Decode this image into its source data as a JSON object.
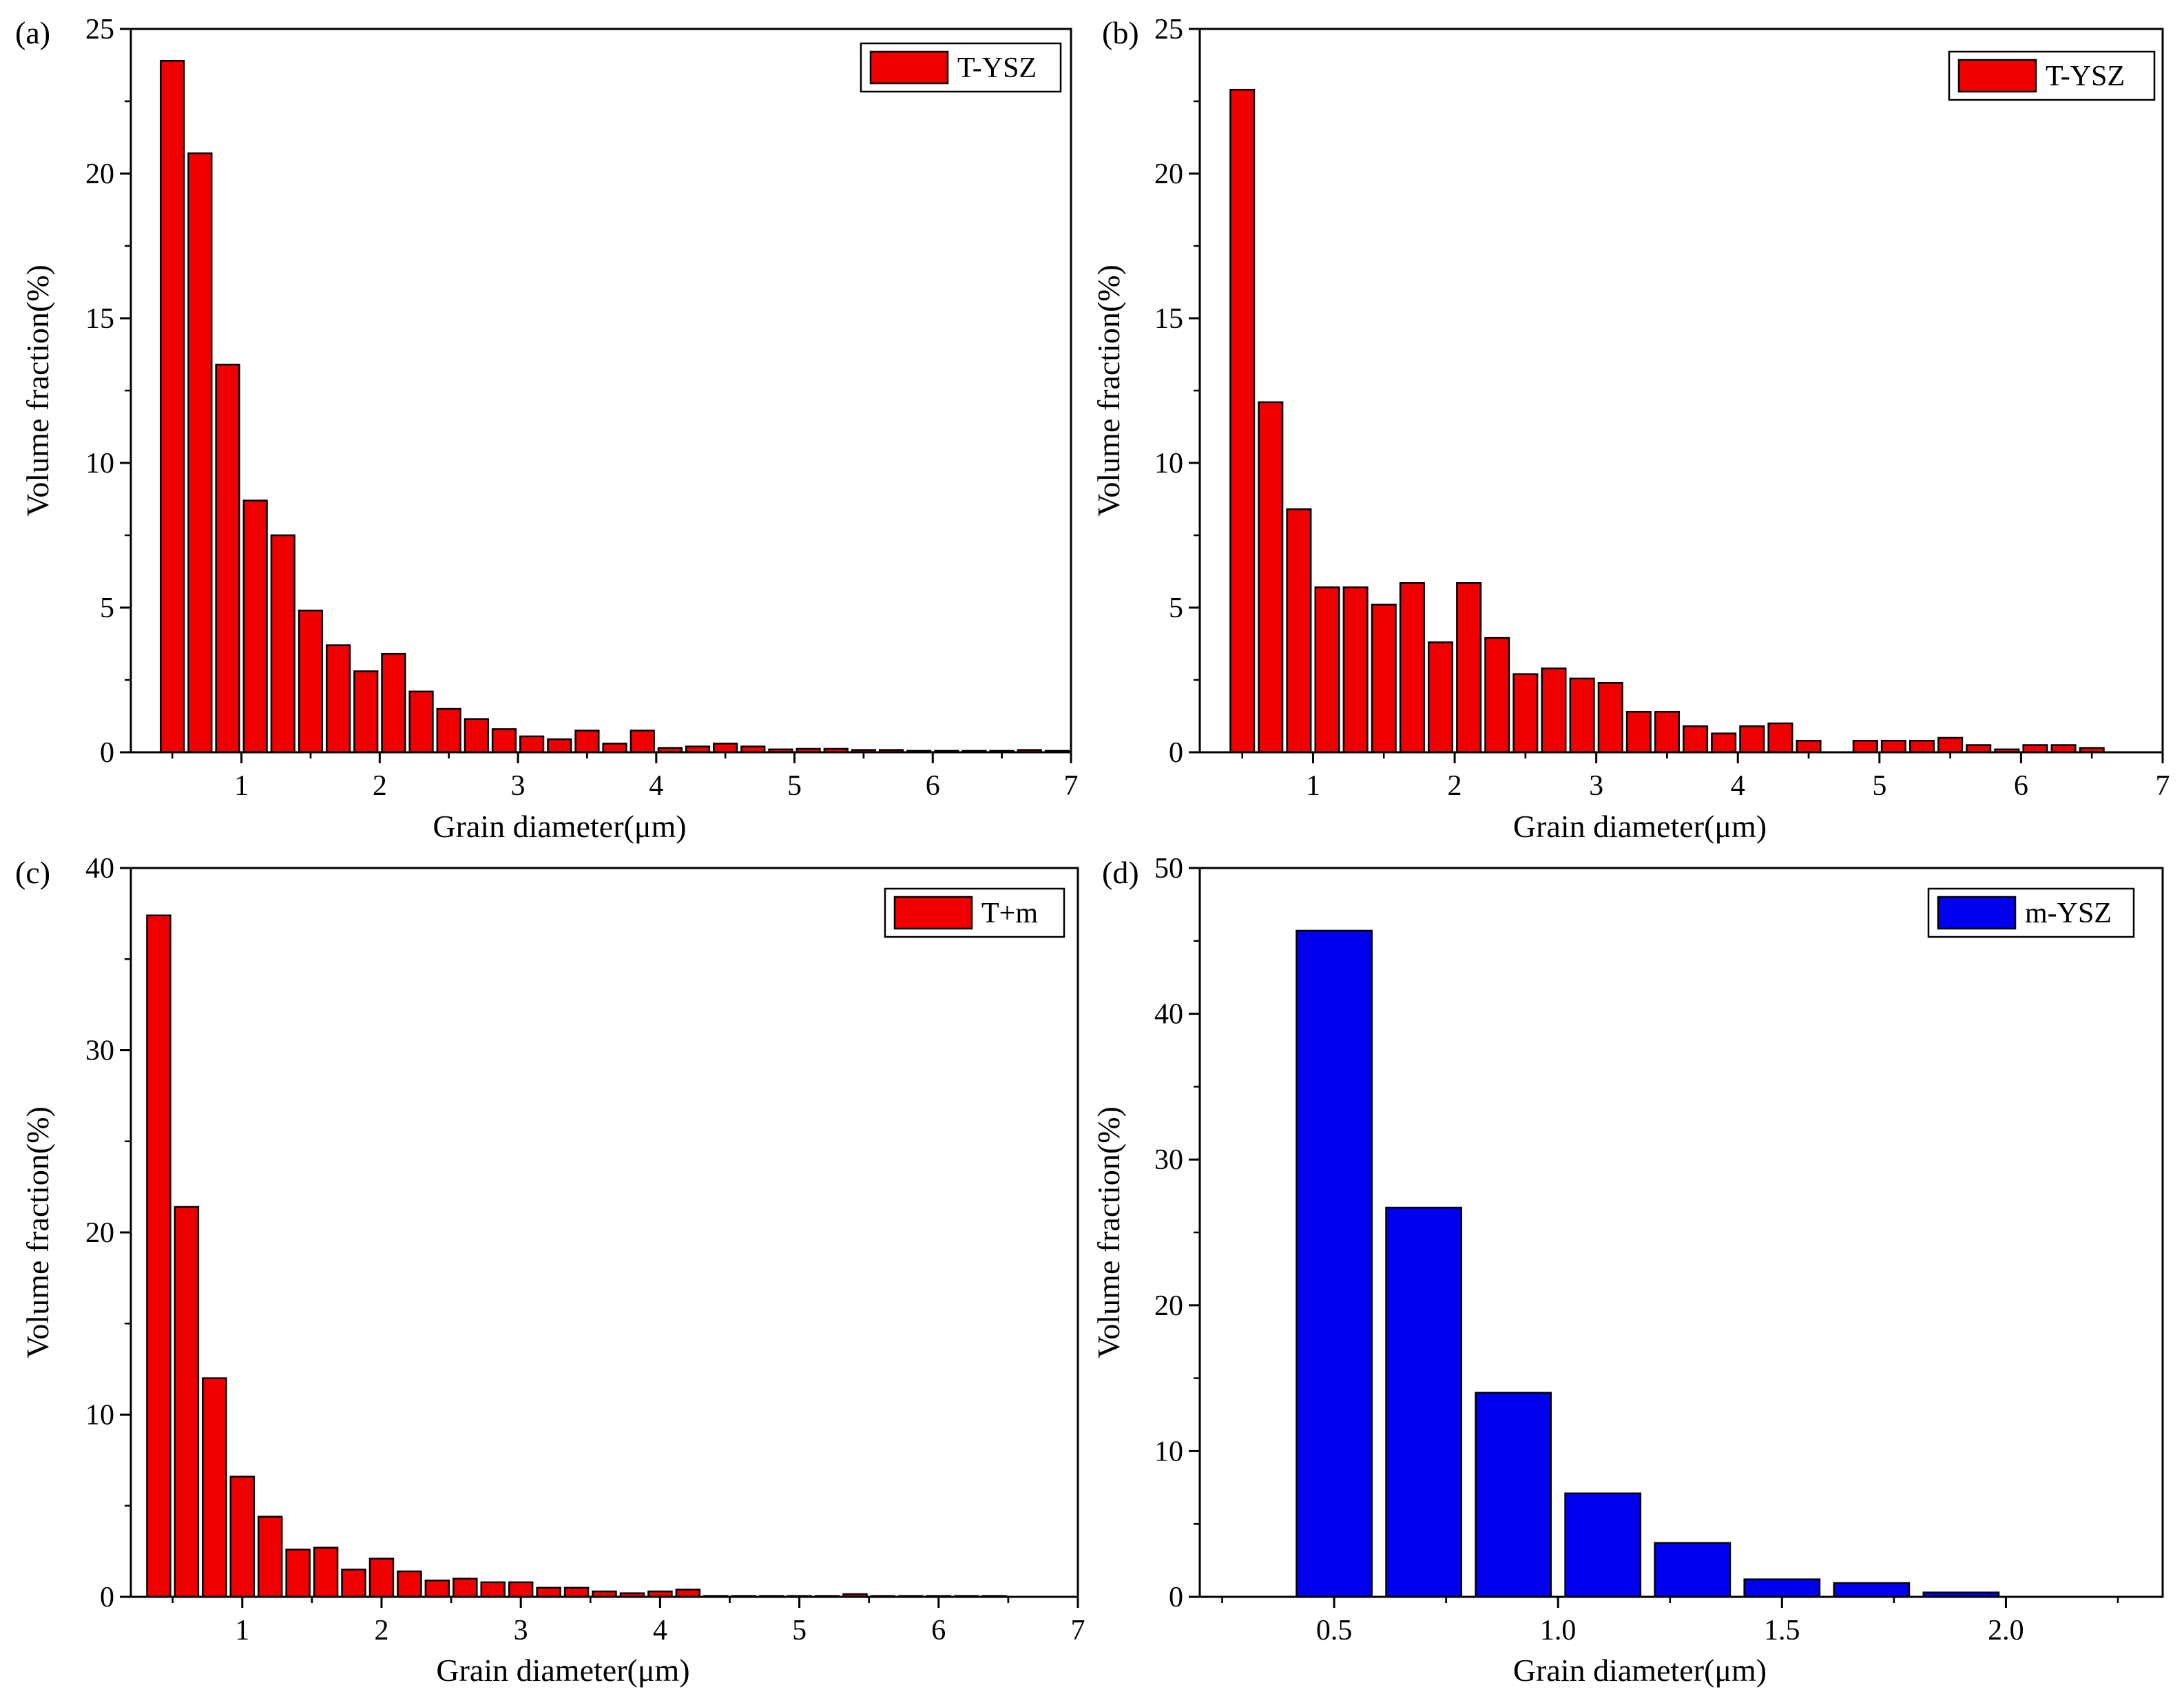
{
  "chart_data": [
    {
      "type": "bar",
      "panel_label": "(a)",
      "xlabel": "Grain diameter(μm)",
      "ylabel": "Volume fraction(%)",
      "xlim": [
        0.2,
        7
      ],
      "ylim": [
        0,
        25
      ],
      "xticks": [
        1,
        2,
        3,
        4,
        5,
        6,
        7
      ],
      "xtick_labels": [
        "1",
        "2",
        "3",
        "4",
        "5",
        "6",
        "7"
      ],
      "yticks": [
        0,
        5,
        10,
        15,
        20,
        25
      ],
      "ytick_labels": [
        "0",
        "5",
        "10",
        "15",
        "20",
        "25"
      ],
      "bin_width": 0.2,
      "legend": {
        "label": "T-YSZ",
        "color": "#ee0000",
        "position": "top-right"
      },
      "x": [
        0.5,
        0.7,
        0.9,
        1.1,
        1.3,
        1.5,
        1.7,
        1.9,
        2.1,
        2.3,
        2.5,
        2.7,
        2.9,
        3.1,
        3.3,
        3.5,
        3.7,
        3.9,
        4.1,
        4.3,
        4.5,
        4.7,
        4.9,
        5.1,
        5.3,
        5.5,
        5.7,
        5.9,
        6.1,
        6.3,
        6.5,
        6.7,
        6.9
      ],
      "values": [
        23.9,
        20.7,
        13.4,
        8.7,
        7.5,
        4.9,
        3.7,
        2.8,
        3.4,
        2.1,
        1.5,
        1.15,
        0.8,
        0.55,
        0.45,
        0.75,
        0.3,
        0.75,
        0.15,
        0.2,
        0.3,
        0.2,
        0.1,
        0.12,
        0.12,
        0.08,
        0.08,
        0.05,
        0.05,
        0.05,
        0.05,
        0.08,
        0.05
      ]
    },
    {
      "type": "bar",
      "panel_label": "(b)",
      "xlabel": "Grain diameter(μm)",
      "ylabel": "Volume fraction(%)",
      "xlim": [
        0.2,
        7
      ],
      "ylim": [
        0,
        25
      ],
      "xticks": [
        1,
        2,
        3,
        4,
        5,
        6,
        7
      ],
      "xtick_labels": [
        "1",
        "2",
        "3",
        "4",
        "5",
        "6",
        "7"
      ],
      "yticks": [
        0,
        5,
        10,
        15,
        20,
        25
      ],
      "ytick_labels": [
        "0",
        "5",
        "10",
        "15",
        "20",
        "25"
      ],
      "bin_width": 0.2,
      "legend": {
        "label": "T-YSZ",
        "color": "#ee0000",
        "position": "top-right"
      },
      "x": [
        0.5,
        0.7,
        0.9,
        1.1,
        1.3,
        1.5,
        1.7,
        1.9,
        2.1,
        2.3,
        2.5,
        2.7,
        2.9,
        3.1,
        3.3,
        3.5,
        3.7,
        3.9,
        4.1,
        4.3,
        4.5,
        4.7,
        4.9,
        5.1,
        5.3,
        5.5,
        5.7,
        5.9,
        6.1,
        6.3,
        6.5
      ],
      "values": [
        22.9,
        12.1,
        8.4,
        5.7,
        5.7,
        5.1,
        5.85,
        3.8,
        5.85,
        3.95,
        2.7,
        2.9,
        2.55,
        2.4,
        1.4,
        1.4,
        0.9,
        0.65,
        0.9,
        1.0,
        0.4,
        0.0,
        0.4,
        0.4,
        0.4,
        0.5,
        0.25,
        0.1,
        0.25,
        0.25,
        0.15
      ]
    },
    {
      "type": "bar",
      "panel_label": "(c)",
      "xlabel": "Grain diameter(μm)",
      "ylabel": "Volume fraction(%)",
      "xlim": [
        0.2,
        7
      ],
      "ylim": [
        0,
        40
      ],
      "xticks": [
        1,
        2,
        3,
        4,
        5,
        6,
        7
      ],
      "xtick_labels": [
        "1",
        "2",
        "3",
        "4",
        "5",
        "6",
        "7"
      ],
      "yticks": [
        0,
        10,
        20,
        30,
        40
      ],
      "ytick_labels": [
        "0",
        "10",
        "20",
        "30",
        "40"
      ],
      "bin_width": 0.2,
      "legend": {
        "label": "T+m",
        "color": "#ee0000",
        "position": "top-right"
      },
      "x": [
        0.4,
        0.6,
        0.8,
        1.0,
        1.2,
        1.4,
        1.6,
        1.8,
        2.0,
        2.2,
        2.4,
        2.6,
        2.8,
        3.0,
        3.2,
        3.4,
        3.6,
        3.8,
        4.0,
        4.2,
        4.4,
        4.6,
        4.8,
        5.0,
        5.2,
        5.4,
        5.6,
        5.8,
        6.0,
        6.2,
        6.4
      ],
      "values": [
        37.4,
        21.4,
        12.0,
        6.6,
        4.4,
        2.6,
        2.7,
        1.5,
        2.1,
        1.4,
        0.9,
        1.0,
        0.8,
        0.8,
        0.5,
        0.5,
        0.3,
        0.2,
        0.3,
        0.4,
        0.05,
        0.05,
        0.05,
        0.05,
        0.05,
        0.15,
        0.05,
        0.05,
        0.05,
        0.05,
        0.05
      ]
    },
    {
      "type": "bar",
      "panel_label": "(d)",
      "xlabel": "Grain diameter(μm)",
      "ylabel": "Volume fraction(%)",
      "xlim": [
        0.2,
        2.35
      ],
      "ylim": [
        0,
        50
      ],
      "xticks": [
        0.5,
        1.0,
        1.5,
        2.0
      ],
      "xtick_labels": [
        "0.5",
        "1.0",
        "1.5",
        "2.0"
      ],
      "yticks": [
        0,
        10,
        20,
        30,
        40,
        50
      ],
      "ytick_labels": [
        "0",
        "10",
        "20",
        "30",
        "40",
        "50"
      ],
      "bin_width": 0.2,
      "legend": {
        "label": "m-YSZ",
        "color": "#0000ee",
        "position": "top-right"
      },
      "x": [
        0.5,
        0.7,
        0.9,
        1.1,
        1.3,
        1.5,
        1.7,
        1.9
      ],
      "values": [
        45.7,
        26.7,
        14.0,
        7.1,
        3.7,
        1.2,
        0.95,
        0.3
      ]
    }
  ]
}
